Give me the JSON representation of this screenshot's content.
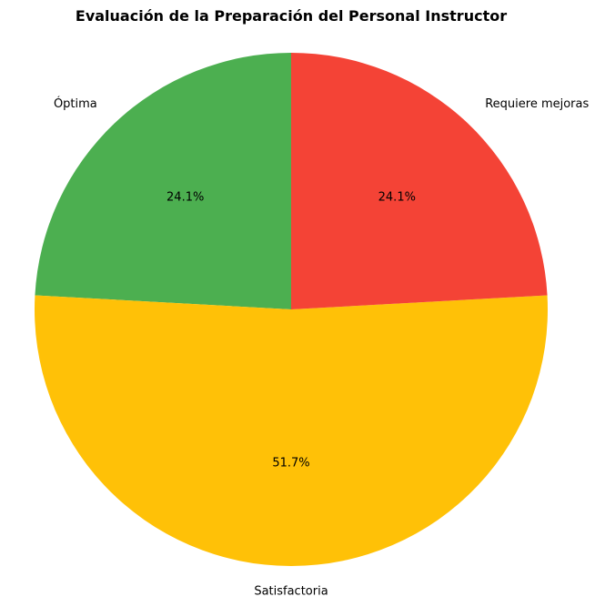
{
  "chart_data": {
    "type": "pie",
    "title": "Evaluación de la Preparación del Personal Instructor",
    "start_angle_deg": 90,
    "direction": "counterclockwise",
    "slices": [
      {
        "label": "Óptima",
        "value": 24.1,
        "pct_label": "24.1%",
        "color": "#4CAF50"
      },
      {
        "label": "Satisfactoria",
        "value": 51.7,
        "pct_label": "51.7%",
        "color": "#FFC107"
      },
      {
        "label": "Requiere mejoras",
        "value": 24.1,
        "pct_label": "24.1%",
        "color": "#F44336"
      }
    ]
  }
}
